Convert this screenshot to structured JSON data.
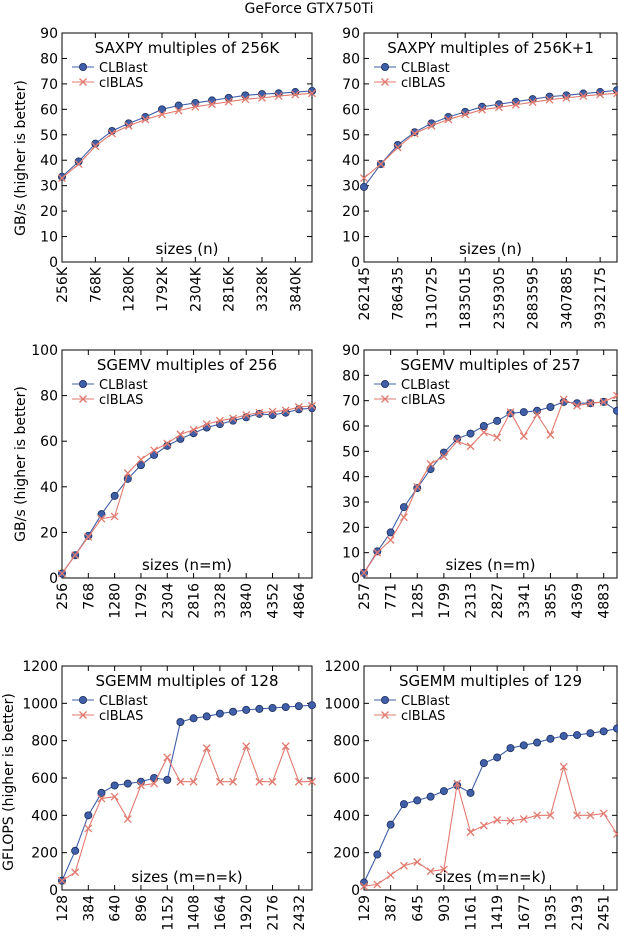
{
  "figure_title": "GeForce GTX750Ti",
  "ylabels": [
    "GB/s (higher is better)",
    "GB/s (higher is better)",
    "GFLOPS (higher is better)"
  ],
  "colors": {
    "clblast": "#3f5fa8",
    "clblas": "#e27a6f"
  },
  "chart_data": [
    {
      "type": "line",
      "title": "SAXPY multiples of 256K",
      "xlabel": "sizes (n)",
      "ylim": [
        0,
        90
      ],
      "yticks": [
        0,
        10,
        20,
        30,
        40,
        50,
        60,
        70,
        80,
        90
      ],
      "xtick_labels": [
        "256K",
        "768K",
        "1280K",
        "1792K",
        "2304K",
        "2816K",
        "3328K",
        "3840K"
      ],
      "series": [
        {
          "name": "CLBlast",
          "values": [
            33.5,
            39.5,
            46.5,
            51.5,
            54.5,
            57,
            60,
            61.5,
            62.5,
            63.5,
            64.5,
            65.5,
            66,
            66.3,
            66.8,
            67.2
          ]
        },
        {
          "name": "clBLAS",
          "values": [
            33,
            38.5,
            45.5,
            50.5,
            53.5,
            56,
            58,
            59.5,
            61,
            62,
            63,
            64,
            64.5,
            65.2,
            65.8,
            66.3
          ]
        }
      ]
    },
    {
      "type": "line",
      "title": "SAXPY multiples of 256K+1",
      "xlabel": "sizes (n)",
      "ylim": [
        0,
        90
      ],
      "yticks": [
        0,
        10,
        20,
        30,
        40,
        50,
        60,
        70,
        80,
        90
      ],
      "xtick_labels": [
        "262145",
        "786435",
        "1310725",
        "1835015",
        "2359305",
        "2883595",
        "3407885",
        "3932175"
      ],
      "series": [
        {
          "name": "CLBlast",
          "values": [
            29.5,
            38.5,
            46,
            51,
            54.5,
            57,
            59,
            61,
            62,
            63,
            64,
            65,
            65.5,
            66.2,
            66.8,
            67.5
          ]
        },
        {
          "name": "clBLAS",
          "values": [
            33,
            38.5,
            45,
            50.5,
            53.5,
            56,
            58,
            59.8,
            60.8,
            61.8,
            62.8,
            63.8,
            64.5,
            65.2,
            65.8,
            66.3
          ]
        }
      ]
    },
    {
      "type": "line",
      "title": "SGEMV multiples of 256",
      "xlabel": "sizes (n=m)",
      "ylim": [
        0,
        100
      ],
      "yticks": [
        0,
        20,
        40,
        60,
        80,
        100
      ],
      "xtick_labels": [
        "256",
        "768",
        "1280",
        "1792",
        "2304",
        "2816",
        "3328",
        "3840",
        "4352",
        "4864"
      ],
      "series": [
        {
          "name": "CLBlast",
          "values": [
            2,
            10,
            18.5,
            28,
            36,
            43.5,
            49.5,
            54,
            58,
            61,
            63.5,
            66,
            67.5,
            69,
            70.5,
            72,
            71.5,
            72.5,
            74,
            74.5
          ]
        },
        {
          "name": "clBLAS",
          "values": [
            2,
            10,
            18,
            26,
            27,
            46,
            52,
            56,
            59,
            63,
            65,
            67.5,
            69,
            70,
            71.5,
            72.5,
            73,
            73.5,
            75,
            75.5
          ]
        }
      ]
    },
    {
      "type": "line",
      "title": "SGEMV multiples of 257",
      "xlabel": "sizes (n=m)",
      "ylim": [
        0,
        90
      ],
      "yticks": [
        0,
        10,
        20,
        30,
        40,
        50,
        60,
        70,
        80,
        90
      ],
      "xtick_labels": [
        "257",
        "771",
        "1285",
        "1799",
        "2313",
        "2827",
        "3341",
        "3855",
        "4369",
        "4883"
      ],
      "series": [
        {
          "name": "CLBlast",
          "values": [
            2,
            10.5,
            18,
            28,
            35.5,
            43,
            49.5,
            55,
            57,
            60,
            62,
            65,
            65.5,
            66,
            67.5,
            69.5,
            69,
            69,
            69.5,
            66
          ]
        },
        {
          "name": "clBLAS",
          "values": [
            2,
            10,
            15,
            24,
            36,
            45,
            48,
            54,
            52,
            57.5,
            55.5,
            65.5,
            56,
            64.5,
            56.5,
            70.5,
            68,
            69,
            69.5,
            72
          ]
        }
      ]
    },
    {
      "type": "line",
      "title": "SGEMM multiples of 128",
      "xlabel": "sizes (m=n=k)",
      "ylim": [
        0,
        1200
      ],
      "yticks": [
        0,
        200,
        400,
        600,
        800,
        1000,
        1200
      ],
      "xtick_labels": [
        "128",
        "384",
        "640",
        "896",
        "1152",
        "1408",
        "1664",
        "1920",
        "2176",
        "2432"
      ],
      "series": [
        {
          "name": "CLBlast",
          "values": [
            50,
            210,
            400,
            520,
            560,
            570,
            580,
            600,
            590,
            900,
            920,
            930,
            945,
            955,
            965,
            970,
            975,
            980,
            985,
            990
          ]
        },
        {
          "name": "clBLAS",
          "values": [
            50,
            95,
            330,
            490,
            500,
            380,
            560,
            570,
            710,
            580,
            580,
            760,
            580,
            580,
            770,
            580,
            580,
            770,
            580,
            580
          ]
        }
      ]
    },
    {
      "type": "line",
      "title": "SGEMM multiples of 129",
      "xlabel": "sizes (m=n=k)",
      "ylim": [
        0,
        1200
      ],
      "yticks": [
        0,
        200,
        400,
        600,
        800,
        1000,
        1200
      ],
      "xtick_labels": [
        "129",
        "387",
        "645",
        "903",
        "1161",
        "1419",
        "1677",
        "1935",
        "2193",
        "2451"
      ],
      "series": [
        {
          "name": "CLBlast",
          "values": [
            40,
            190,
            350,
            460,
            480,
            500,
            530,
            560,
            520,
            680,
            710,
            760,
            775,
            790,
            810,
            825,
            830,
            840,
            850,
            865
          ]
        },
        {
          "name": "clBLAS",
          "values": [
            20,
            30,
            80,
            130,
            150,
            100,
            110,
            570,
            310,
            345,
            375,
            370,
            380,
            400,
            400,
            660,
            400,
            400,
            410,
            300
          ]
        }
      ]
    }
  ]
}
